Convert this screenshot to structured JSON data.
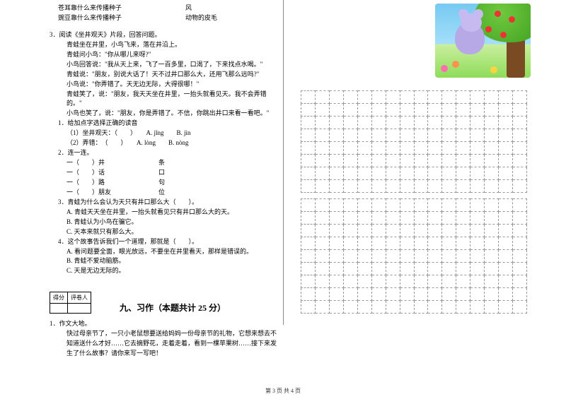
{
  "top": {
    "row1a": "苍耳靠什么来传播种子",
    "row1b": "风",
    "row2a": "豌豆靠什么来传播种子",
    "row2b": "动物的皮毛"
  },
  "q3": {
    "title": "3．阅读《坐井观天》片段，回答问题。",
    "p": [
      "青蛙坐在井里，小鸟飞来，落在井沿上。",
      "青蛙问小鸟：\"你从哪儿来呀?\"",
      "小鸟回答说：\"我从天上来，飞了一百多里，口渴了，下来找点水喝。\"",
      "青蛙说：\"朋友，别说大话了！天不过井口那么大，还用飞那么远吗?\"",
      "小鸟说：\"你弄错了。天无边无际，大得很哪！\"",
      "青蛙笑了，说：\"朋友，我天天坐在井里，一抬头就看见天。我不会弄错的。\"",
      "小鸟也笑了，说：\"朋友，你是弄错了。不信，你跳出井口来看一看吧。\""
    ],
    "sub1_title": "1．给加点字选择正确的读音",
    "sub1_items": [
      "（1）坐井观天：（　　）　　A. jǐng　　B. jìn",
      "（2）弄错：　（　　）　　A. lòng　　B. nòng"
    ],
    "sub2_title": "2．连一连。",
    "sub2_items": [
      {
        "l": "一（　　）井",
        "r": "条"
      },
      {
        "l": "一（　　）话",
        "r": "口"
      },
      {
        "l": "一（　　）路",
        "r": "句"
      },
      {
        "l": "一（　　）朋友",
        "r": "位"
      }
    ],
    "sub3_title": "3．青蛙为什么会认为天只有井口那么大（　　）。",
    "sub3_opts": [
      "A. 青蛙天天坐在井里，一抬头就看见只有井口那么大的天。",
      "B. 青蛙认为小鸟在骗它。",
      "C. 天本来就只有那么大。"
    ],
    "sub4_title": "4．这个故事告诉我们一个道理，那就是（　　）。",
    "sub4_opts": [
      "A. 看问题要全面，眼光放远，不要坐在井里看天，那样是错误的。",
      "B. 青蛙不爱动脑筋。",
      "C. 天是无边无际的。"
    ]
  },
  "score": {
    "c1": "得分",
    "c2": "评卷人"
  },
  "section9": "九、习作（本题共计 25 分）",
  "essay": {
    "head": "1．作文大地。",
    "body": "快过母亲节了，一只小老鼠想要送给妈妈一份母亲节的礼物，它想来想去不知道送什么才好……它去摘野花，走着走着，看到一棵苹果树……接下来发生了什么故事？请你来写一写吧！"
  },
  "footer": "第 3 页  共 4 页",
  "grid": {
    "rows1": 8,
    "rows2": 9,
    "cols": 16
  },
  "colors": {
    "text": "#000000",
    "dash": "#999999"
  }
}
